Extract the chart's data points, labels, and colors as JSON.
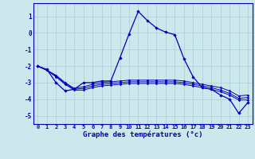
{
  "title": "Graphe des températures (°c)",
  "background_color": "#cce8ec",
  "grid_color": "#aacdd4",
  "line_color": "#0000bb",
  "x_labels": [
    "0",
    "1",
    "2",
    "3",
    "4",
    "5",
    "6",
    "7",
    "8",
    "9",
    "10",
    "11",
    "12",
    "13",
    "14",
    "15",
    "16",
    "17",
    "18",
    "19",
    "20",
    "21",
    "22",
    "23"
  ],
  "ylim": [
    -5.5,
    1.8
  ],
  "yticks": [
    1,
    0,
    -1,
    -2,
    -3,
    -4,
    -5
  ],
  "series": {
    "main": [
      -2.0,
      -2.2,
      -3.0,
      -3.5,
      -3.4,
      -3.0,
      -3.0,
      -2.9,
      -2.9,
      -1.5,
      -0.05,
      1.3,
      0.75,
      0.3,
      0.05,
      -0.1,
      -1.55,
      -2.65,
      -3.3,
      -3.4,
      -3.75,
      -4.0,
      -4.85,
      -4.2
    ],
    "line2": [
      -2.0,
      -2.25,
      -2.55,
      -3.0,
      -3.35,
      -3.25,
      -3.1,
      -3.0,
      -2.95,
      -2.9,
      -2.85,
      -2.85,
      -2.85,
      -2.85,
      -2.85,
      -2.85,
      -2.9,
      -3.0,
      -3.1,
      -3.2,
      -3.3,
      -3.5,
      -3.8,
      -3.75
    ],
    "line3": [
      -2.0,
      -2.25,
      -2.6,
      -3.05,
      -3.4,
      -3.35,
      -3.2,
      -3.1,
      -3.05,
      -3.0,
      -2.95,
      -2.95,
      -2.95,
      -2.95,
      -2.95,
      -2.95,
      -3.0,
      -3.1,
      -3.2,
      -3.3,
      -3.45,
      -3.65,
      -3.95,
      -3.9
    ],
    "line4": [
      -2.0,
      -2.25,
      -2.65,
      -3.1,
      -3.45,
      -3.45,
      -3.3,
      -3.2,
      -3.15,
      -3.1,
      -3.05,
      -3.05,
      -3.05,
      -3.05,
      -3.05,
      -3.05,
      -3.1,
      -3.2,
      -3.3,
      -3.4,
      -3.55,
      -3.75,
      -4.05,
      -4.05
    ]
  }
}
